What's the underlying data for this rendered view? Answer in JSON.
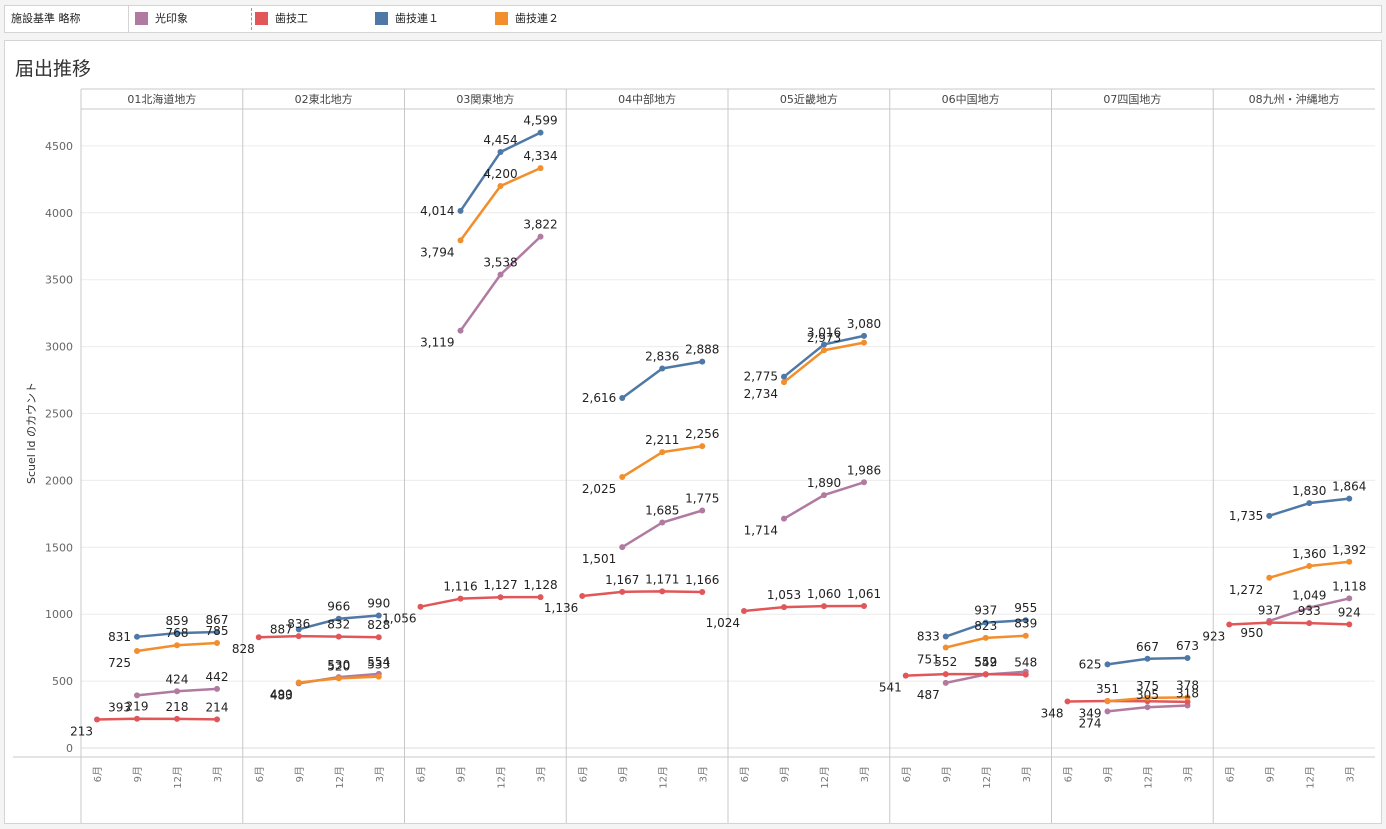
{
  "legend": {
    "title": "施設基準 略称",
    "items": [
      {
        "label": "光印象",
        "color": "#b07aa1"
      },
      {
        "label": "歯技工",
        "color": "#e15759"
      },
      {
        "label": "歯技連１",
        "color": "#4e79a7"
      },
      {
        "label": "歯技連２",
        "color": "#f28e2b"
      }
    ]
  },
  "chart_title": "届出推移",
  "chart_data": {
    "type": "line",
    "ylabel": "Scuel Id のカウント",
    "ylim": [
      0,
      4800
    ],
    "yticks": [
      0,
      500,
      1000,
      1500,
      2000,
      2500,
      3000,
      3500,
      4000,
      4500
    ],
    "x_labels": [
      "6月",
      "9月",
      "12月",
      "3月"
    ],
    "panels": [
      {
        "name": "01北海道地方",
        "series": [
          {
            "name": "光印象",
            "values": [
              null,
              393,
              424,
              442
            ]
          },
          {
            "name": "歯技工",
            "values": [
              213,
              219,
              218,
              214
            ]
          },
          {
            "name": "歯技連１",
            "values": [
              null,
              831,
              859,
              867
            ]
          },
          {
            "name": "歯技連２",
            "values": [
              null,
              725,
              768,
              785
            ]
          }
        ]
      },
      {
        "name": "02東北地方",
        "series": [
          {
            "name": "光印象",
            "values": [
              null,
              483,
              530,
              554
            ]
          },
          {
            "name": "歯技工",
            "values": [
              828,
              836,
              832,
              828
            ]
          },
          {
            "name": "歯技連１",
            "values": [
              null,
              887,
              966,
              990
            ]
          },
          {
            "name": "歯技連２",
            "values": [
              null,
              490,
              520,
              533
            ]
          }
        ]
      },
      {
        "name": "03関東地方",
        "series": [
          {
            "name": "光印象",
            "values": [
              null,
              3119,
              3538,
              3822
            ]
          },
          {
            "name": "歯技工",
            "values": [
              1056,
              1116,
              1127,
              1128
            ]
          },
          {
            "name": "歯技連１",
            "values": [
              null,
              4014,
              4454,
              4599
            ]
          },
          {
            "name": "歯技連２",
            "values": [
              null,
              3794,
              4200,
              4334
            ]
          }
        ]
      },
      {
        "name": "04中部地方",
        "series": [
          {
            "name": "光印象",
            "values": [
              null,
              1501,
              1685,
              1775
            ]
          },
          {
            "name": "歯技工",
            "values": [
              1136,
              1167,
              1171,
              1166
            ]
          },
          {
            "name": "歯技連１",
            "values": [
              null,
              2616,
              2836,
              2888
            ]
          },
          {
            "name": "歯技連２",
            "values": [
              null,
              2025,
              2211,
              2256
            ]
          }
        ]
      },
      {
        "name": "05近畿地方",
        "series": [
          {
            "name": "光印象",
            "values": [
              null,
              1714,
              1890,
              1986
            ]
          },
          {
            "name": "歯技工",
            "values": [
              1024,
              1053,
              1060,
              1061
            ]
          },
          {
            "name": "歯技連１",
            "values": [
              null,
              2775,
              3016,
              3080
            ]
          },
          {
            "name": "歯技連２",
            "values": [
              null,
              2734,
              2973,
              3030
            ]
          }
        ]
      },
      {
        "name": "06中国地方",
        "series": [
          {
            "name": "光印象",
            "values": [
              null,
              487,
              549,
              570
            ]
          },
          {
            "name": "歯技工",
            "values": [
              541,
              552,
              552,
              548
            ]
          },
          {
            "name": "歯技連１",
            "values": [
              null,
              833,
              937,
              955
            ]
          },
          {
            "name": "歯技連２",
            "values": [
              null,
              751,
              823,
              839
            ]
          }
        ]
      },
      {
        "name": "07四国地方",
        "series": [
          {
            "name": "光印象",
            "values": [
              null,
              274,
              305,
              318
            ]
          },
          {
            "name": "歯技工",
            "values": [
              348,
              351,
              349,
              345
            ]
          },
          {
            "name": "歯技連１",
            "values": [
              null,
              625,
              667,
              673
            ]
          },
          {
            "name": "歯技連２",
            "values": [
              null,
              349,
              375,
              378
            ]
          }
        ]
      },
      {
        "name": "08九州・沖縄地方",
        "series": [
          {
            "name": "光印象",
            "values": [
              null,
              950,
              1049,
              1118
            ]
          },
          {
            "name": "歯技工",
            "values": [
              923,
              937,
              933,
              924
            ]
          },
          {
            "name": "歯技連１",
            "values": [
              null,
              1735,
              1830,
              1864
            ]
          },
          {
            "name": "歯技連２",
            "values": [
              null,
              1272,
              1360,
              1392
            ]
          }
        ]
      }
    ],
    "data_labels": [
      {
        "panel": 0,
        "series": 0,
        "points": [
          {
            "i": 1,
            "text": "393"
          },
          {
            "i": 2,
            "text": "424"
          },
          {
            "i": 3,
            "text": "442"
          }
        ]
      },
      {
        "panel": 0,
        "series": 1,
        "points": [
          {
            "i": 0,
            "text": "213"
          },
          {
            "i": 1,
            "text": "219"
          },
          {
            "i": 2,
            "text": "218"
          },
          {
            "i": 3,
            "text": "214"
          }
        ]
      },
      {
        "panel": 0,
        "series": 2,
        "points": [
          {
            "i": 1,
            "text": "831"
          },
          {
            "i": 2,
            "text": "859"
          },
          {
            "i": 3,
            "text": "867"
          }
        ]
      },
      {
        "panel": 0,
        "series": 3,
        "points": [
          {
            "i": 1,
            "text": "725"
          },
          {
            "i": 2,
            "text": "768"
          },
          {
            "i": 3,
            "text": "785"
          }
        ]
      },
      {
        "panel": 1,
        "series": 0,
        "points": [
          {
            "i": 1,
            "text": "483"
          },
          {
            "i": 2,
            "text": "530"
          },
          {
            "i": 3,
            "text": "554"
          }
        ]
      },
      {
        "panel": 1,
        "series": 1,
        "points": [
          {
            "i": 0,
            "text": "828"
          },
          {
            "i": 1,
            "text": "836"
          },
          {
            "i": 2,
            "text": "832"
          },
          {
            "i": 3,
            "text": "828"
          }
        ]
      },
      {
        "panel": 1,
        "series": 2,
        "points": [
          {
            "i": 1,
            "text": "887"
          },
          {
            "i": 2,
            "text": "966"
          },
          {
            "i": 3,
            "text": "990"
          }
        ]
      },
      {
        "panel": 1,
        "series": 3,
        "points": [
          {
            "i": 1,
            "text": "490"
          },
          {
            "i": 2,
            "text": "520"
          },
          {
            "i": 3,
            "text": "533"
          }
        ]
      },
      {
        "panel": 2,
        "series": 0,
        "points": [
          {
            "i": 1,
            "text": "3,119"
          },
          {
            "i": 2,
            "text": "3,538"
          },
          {
            "i": 3,
            "text": "3,822"
          }
        ]
      },
      {
        "panel": 2,
        "series": 1,
        "points": [
          {
            "i": 0,
            "text": "1,056"
          },
          {
            "i": 1,
            "text": "1,116"
          },
          {
            "i": 2,
            "text": "1,127"
          },
          {
            "i": 3,
            "text": "1,128"
          }
        ]
      },
      {
        "panel": 2,
        "series": 2,
        "points": [
          {
            "i": 1,
            "text": "4,014"
          },
          {
            "i": 2,
            "text": "4,454"
          },
          {
            "i": 3,
            "text": "4,599"
          }
        ]
      },
      {
        "panel": 2,
        "series": 3,
        "points": [
          {
            "i": 1,
            "text": "3,794"
          },
          {
            "i": 2,
            "text": "4,200"
          },
          {
            "i": 3,
            "text": "4,334"
          }
        ]
      },
      {
        "panel": 3,
        "series": 0,
        "points": [
          {
            "i": 1,
            "text": "1,501"
          },
          {
            "i": 2,
            "text": "1,685"
          },
          {
            "i": 3,
            "text": "1,775"
          }
        ]
      },
      {
        "panel": 3,
        "series": 1,
        "points": [
          {
            "i": 0,
            "text": "1,136"
          },
          {
            "i": 1,
            "text": "1,167"
          },
          {
            "i": 2,
            "text": "1,171"
          },
          {
            "i": 3,
            "text": "1,166"
          }
        ]
      },
      {
        "panel": 3,
        "series": 2,
        "points": [
          {
            "i": 1,
            "text": "2,616"
          },
          {
            "i": 2,
            "text": "2,836"
          },
          {
            "i": 3,
            "text": "2,888"
          }
        ]
      },
      {
        "panel": 3,
        "series": 3,
        "points": [
          {
            "i": 1,
            "text": "2,025"
          },
          {
            "i": 2,
            "text": "2,211"
          },
          {
            "i": 3,
            "text": "2,256"
          }
        ]
      },
      {
        "panel": 4,
        "series": 0,
        "points": [
          {
            "i": 1,
            "text": "1,714"
          },
          {
            "i": 2,
            "text": "1,890"
          },
          {
            "i": 3,
            "text": "1,986"
          }
        ]
      },
      {
        "panel": 4,
        "series": 1,
        "points": [
          {
            "i": 0,
            "text": "1,024"
          },
          {
            "i": 1,
            "text": "1,053"
          },
          {
            "i": 2,
            "text": "1,060"
          },
          {
            "i": 3,
            "text": "1,061"
          }
        ]
      },
      {
        "panel": 4,
        "series": 2,
        "points": [
          {
            "i": 1,
            "text": "2,775"
          },
          {
            "i": 2,
            "text": "3,016"
          },
          {
            "i": 3,
            "text": "3,080"
          }
        ]
      },
      {
        "panel": 4,
        "series": 3,
        "points": [
          {
            "i": 1,
            "text": "2,734"
          },
          {
            "i": 2,
            "text": "2,973"
          }
        ]
      },
      {
        "panel": 5,
        "series": 0,
        "points": [
          {
            "i": 1,
            "text": "487"
          },
          {
            "i": 2,
            "text": "549"
          }
        ]
      },
      {
        "panel": 5,
        "series": 1,
        "points": [
          {
            "i": 0,
            "text": "541"
          },
          {
            "i": 1,
            "text": "552"
          },
          {
            "i": 2,
            "text": "552"
          },
          {
            "i": 3,
            "text": "548"
          }
        ]
      },
      {
        "panel": 5,
        "series": 2,
        "points": [
          {
            "i": 1,
            "text": "833"
          },
          {
            "i": 2,
            "text": "937"
          },
          {
            "i": 3,
            "text": "955"
          }
        ]
      },
      {
        "panel": 5,
        "series": 3,
        "points": [
          {
            "i": 1,
            "text": "751"
          },
          {
            "i": 2,
            "text": "823"
          },
          {
            "i": 3,
            "text": "839"
          }
        ]
      },
      {
        "panel": 6,
        "series": 0,
        "points": [
          {
            "i": 1,
            "text": "274"
          },
          {
            "i": 2,
            "text": "305"
          },
          {
            "i": 3,
            "text": "318"
          }
        ]
      },
      {
        "panel": 6,
        "series": 1,
        "points": [
          {
            "i": 0,
            "text": "348"
          },
          {
            "i": 1,
            "text": "351"
          }
        ]
      },
      {
        "panel": 6,
        "series": 2,
        "points": [
          {
            "i": 1,
            "text": "625"
          },
          {
            "i": 2,
            "text": "667"
          },
          {
            "i": 3,
            "text": "673"
          }
        ]
      },
      {
        "panel": 6,
        "series": 3,
        "points": [
          {
            "i": 1,
            "text": "349"
          },
          {
            "i": 2,
            "text": "375"
          },
          {
            "i": 3,
            "text": "378"
          }
        ]
      },
      {
        "panel": 7,
        "series": 0,
        "points": [
          {
            "i": 1,
            "text": "950"
          },
          {
            "i": 2,
            "text": "1,049"
          },
          {
            "i": 3,
            "text": "1,118"
          }
        ]
      },
      {
        "panel": 7,
        "series": 1,
        "points": [
          {
            "i": 0,
            "text": "923"
          },
          {
            "i": 1,
            "text": "937"
          },
          {
            "i": 2,
            "text": "933"
          },
          {
            "i": 3,
            "text": "924"
          }
        ]
      },
      {
        "panel": 7,
        "series": 2,
        "points": [
          {
            "i": 1,
            "text": "1,735"
          },
          {
            "i": 2,
            "text": "1,830"
          },
          {
            "i": 3,
            "text": "1,864"
          }
        ]
      },
      {
        "panel": 7,
        "series": 3,
        "points": [
          {
            "i": 1,
            "text": "1,272"
          },
          {
            "i": 2,
            "text": "1,360"
          },
          {
            "i": 3,
            "text": "1,392"
          }
        ]
      }
    ]
  }
}
